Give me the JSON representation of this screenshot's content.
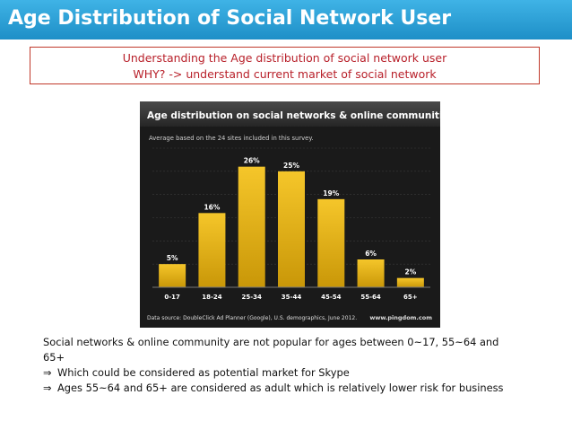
{
  "slide": {
    "title": "Age Distribution of Social Network User",
    "subtitle_line1": "Understanding the Age distribution of social network user",
    "subtitle_line2": "WHY? -> understand current market of social network",
    "accent_color": "#1e8fc7",
    "subtitle_color": "#b8202a"
  },
  "body": {
    "line1": "Social networks & online community are not popular for ages between 0~17, 55~64 and",
    "line2": "65+",
    "bullet_symbol": "⇒",
    "bullet1": "Which could be considered as potential market for Skype",
    "bullet2": "Ages 55~64 and 65+ are considered as adult which is relatively lower risk for business"
  },
  "chart_data": {
    "type": "bar",
    "title": "Age distribution on social networks & online communities",
    "subtitle": "Average based on the 24 sites included in this survey.",
    "categories": [
      "0-17",
      "18-24",
      "25-34",
      "35-44",
      "45-54",
      "55-64",
      "65+"
    ],
    "values": [
      5,
      16,
      26,
      25,
      19,
      6,
      2
    ],
    "value_labels": [
      "5%",
      "16%",
      "26%",
      "25%",
      "19%",
      "6%",
      "2%"
    ],
    "source": "Data source: DoubleClick Ad Planner (Google), U.S. demographics, June 2012.",
    "credit": "www.pingdom.com",
    "ylim": [
      0,
      30
    ],
    "bar_color": "#e6b214",
    "grid": true,
    "legend": "none"
  }
}
